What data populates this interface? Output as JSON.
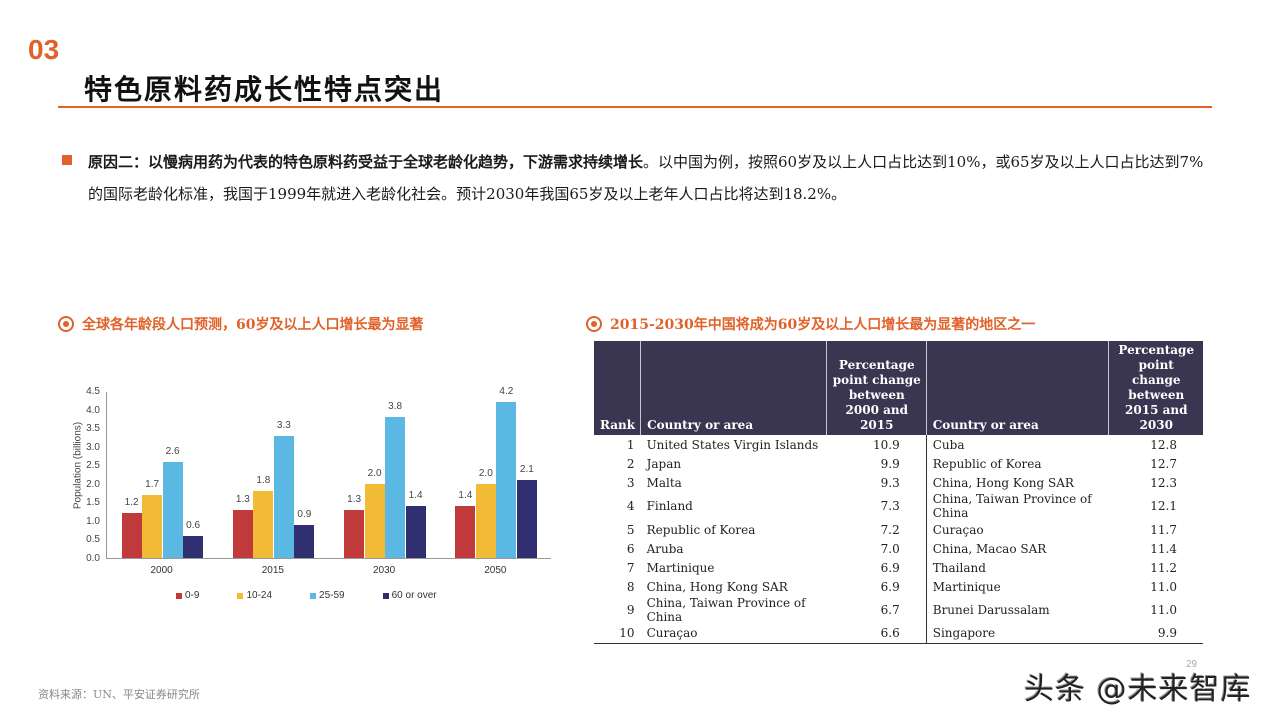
{
  "header": {
    "section_number": "03",
    "title": "特色原料药成长性特点突出"
  },
  "bullet": {
    "bold": "原因二：以慢病用药为代表的特色原料药受益于全球老龄化趋势，下游需求持续增长",
    "normal": "。以中国为例，按照60岁及以上人口占比达到10%，或65岁及以上人口占比达到7%的国际老龄化标准，我国于1999年就进入老龄化社会。预计2030年我国65岁及以上老年人口占比将达到18.2%。"
  },
  "left_panel": {
    "subtitle": "全球各年龄段人口预测，60岁及以上人口增长最为显著",
    "icon": "target-icon"
  },
  "right_panel": {
    "subtitle": "2015-2030年中国将成为60岁及以上人口增长最为显著的地区之一",
    "icon": "target-icon"
  },
  "chart_data": {
    "type": "bar",
    "title": "全球各年龄段人口预测，60岁及以上人口增长最为显著",
    "xlabel": "",
    "ylabel": "Population (billions)",
    "ylim": [
      0,
      4.5
    ],
    "yticks": [
      "0.0",
      "0.5",
      "1.0",
      "1.5",
      "2.0",
      "2.5",
      "3.0",
      "3.5",
      "4.0",
      "4.5"
    ],
    "categories": [
      "2000",
      "2015",
      "2030",
      "2050"
    ],
    "series": [
      {
        "name": "0-9",
        "color": "#c0393b",
        "values": [
          1.2,
          1.3,
          1.3,
          1.4
        ]
      },
      {
        "name": "10-24",
        "color": "#f2bb36",
        "values": [
          1.7,
          1.8,
          2.0,
          2.0
        ]
      },
      {
        "name": "25-59",
        "color": "#5bb8e3",
        "values": [
          2.6,
          3.3,
          3.8,
          4.2
        ]
      },
      {
        "name": "60 or over",
        "color": "#302f72",
        "values": [
          0.6,
          0.9,
          1.4,
          2.1
        ]
      }
    ],
    "labels": [
      [
        "1.2",
        "1.3",
        "1.3",
        "1.4"
      ],
      [
        "1.7",
        "1.8",
        "2.0",
        "2.0"
      ],
      [
        "2.6",
        "3.3",
        "3.8",
        "4.2"
      ],
      [
        "0.6",
        "0.9",
        "1.4",
        "2.1"
      ]
    ],
    "legend_position": "bottom",
    "grid": false
  },
  "table": {
    "headers": {
      "rank": "Rank",
      "country1": "Country or area",
      "change1": "Percentage point change between 2000 and 2015",
      "country2": "Country or area",
      "change2": "Percentage point change between 2015 and 2030"
    },
    "rows": [
      {
        "rank": "1",
        "c1": "United States Virgin Islands",
        "v1": "10.9",
        "c2": "Cuba",
        "v2": "12.8"
      },
      {
        "rank": "2",
        "c1": "Japan",
        "v1": "9.9",
        "c2": "Republic of Korea",
        "v2": "12.7"
      },
      {
        "rank": "3",
        "c1": "Malta",
        "v1": "9.3",
        "c2": "China, Hong Kong SAR",
        "v2": "12.3"
      },
      {
        "rank": "4",
        "c1": "Finland",
        "v1": "7.3",
        "c2": "China, Taiwan Province of China",
        "v2": "12.1"
      },
      {
        "rank": "5",
        "c1": "Republic of Korea",
        "v1": "7.2",
        "c2": "Curaçao",
        "v2": "11.7"
      },
      {
        "rank": "6",
        "c1": "Aruba",
        "v1": "7.0",
        "c2": "China, Macao SAR",
        "v2": "11.4"
      },
      {
        "rank": "7",
        "c1": "Martinique",
        "v1": "6.9",
        "c2": "Thailand",
        "v2": "11.2"
      },
      {
        "rank": "8",
        "c1": "China, Hong Kong SAR",
        "v1": "6.9",
        "c2": "Martinique",
        "v2": "11.0"
      },
      {
        "rank": "9",
        "c1": "China, Taiwan Province of China",
        "v1": "6.7",
        "c2": "Brunei Darussalam",
        "v2": "11.0"
      },
      {
        "rank": "10",
        "c1": "Curaçao",
        "v1": "6.6",
        "c2": "Singapore",
        "v2": "9.9"
      }
    ]
  },
  "footer": {
    "source": "资料来源：UN、平安证券研究所",
    "page_number": "29",
    "watermark": "头条 @未来智库"
  },
  "colors": {
    "accent": "#e0622a",
    "table_header": "#3a3652"
  }
}
